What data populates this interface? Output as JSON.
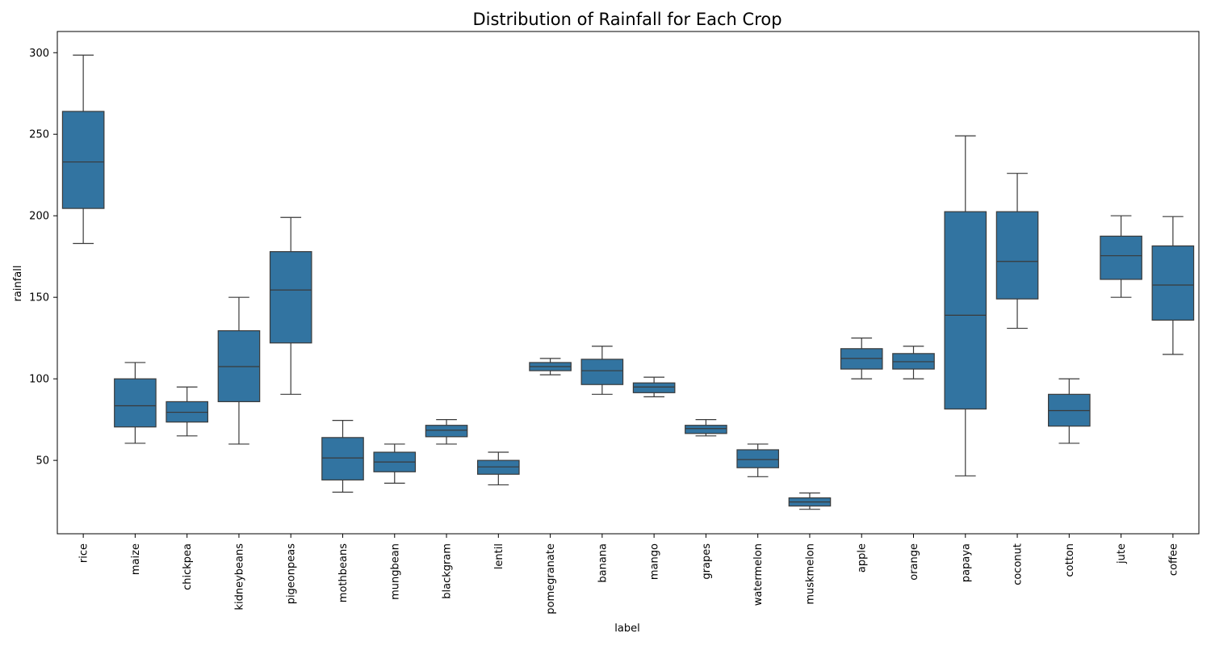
{
  "chart_data": {
    "type": "box",
    "title": "Distribution of Rainfall for Each Crop",
    "xlabel": "label",
    "ylabel": "rainfall",
    "ylim": [
      5,
      313
    ],
    "yticks": [
      50,
      100,
      150,
      200,
      250,
      300
    ],
    "grid": false,
    "legend": "none",
    "box_color": "#3274a1",
    "line_color": "#3a3a3a",
    "categories": [
      "rice",
      "maize",
      "chickpea",
      "kidneybeans",
      "pigeonpeas",
      "mothbeans",
      "mungbean",
      "blackgram",
      "lentil",
      "pomegranate",
      "banana",
      "mango",
      "grapes",
      "watermelon",
      "muskmelon",
      "apple",
      "orange",
      "papaya",
      "coconut",
      "cotton",
      "jute",
      "coffee"
    ],
    "boxes": [
      {
        "min": 183,
        "q1": 204.5,
        "median": 233,
        "q3": 264,
        "max": 298.5
      },
      {
        "min": 60.5,
        "q1": 70.5,
        "median": 83.5,
        "q3": 100,
        "max": 110
      },
      {
        "min": 65,
        "q1": 73.5,
        "median": 79.5,
        "q3": 86,
        "max": 95
      },
      {
        "min": 60,
        "q1": 86,
        "median": 107.5,
        "q3": 129.5,
        "max": 150
      },
      {
        "min": 90.5,
        "q1": 122,
        "median": 154.5,
        "q3": 178,
        "max": 199
      },
      {
        "min": 30.5,
        "q1": 38,
        "median": 51.5,
        "q3": 64,
        "max": 74.5
      },
      {
        "min": 36,
        "q1": 43,
        "median": 49,
        "q3": 55,
        "max": 60
      },
      {
        "min": 60,
        "q1": 64.5,
        "median": 68.5,
        "q3": 71.5,
        "max": 75
      },
      {
        "min": 35,
        "q1": 41.5,
        "median": 46,
        "q3": 50,
        "max": 55
      },
      {
        "min": 102.5,
        "q1": 105,
        "median": 107.5,
        "q3": 110,
        "max": 112.5
      },
      {
        "min": 90.5,
        "q1": 96.5,
        "median": 105,
        "q3": 112,
        "max": 120
      },
      {
        "min": 89,
        "q1": 91.5,
        "median": 95,
        "q3": 97.5,
        "max": 101
      },
      {
        "min": 65,
        "q1": 66.5,
        "median": 69.5,
        "q3": 71.5,
        "max": 75
      },
      {
        "min": 40,
        "q1": 45.5,
        "median": 50.5,
        "q3": 56.5,
        "max": 60
      },
      {
        "min": 20,
        "q1": 22,
        "median": 24.5,
        "q3": 27,
        "max": 30
      },
      {
        "min": 100,
        "q1": 106,
        "median": 112.5,
        "q3": 118.5,
        "max": 125
      },
      {
        "min": 100,
        "q1": 106,
        "median": 110.5,
        "q3": 115.5,
        "max": 120
      },
      {
        "min": 40.5,
        "q1": 81.5,
        "median": 139,
        "q3": 202.5,
        "max": 249
      },
      {
        "min": 131,
        "q1": 149,
        "median": 172,
        "q3": 202.5,
        "max": 226
      },
      {
        "min": 60.5,
        "q1": 71,
        "median": 80.5,
        "q3": 90.5,
        "max": 100
      },
      {
        "min": 150,
        "q1": 161,
        "median": 175.5,
        "q3": 187.5,
        "max": 200
      },
      {
        "min": 115,
        "q1": 136,
        "median": 157.5,
        "q3": 181.5,
        "max": 199.5
      }
    ]
  }
}
